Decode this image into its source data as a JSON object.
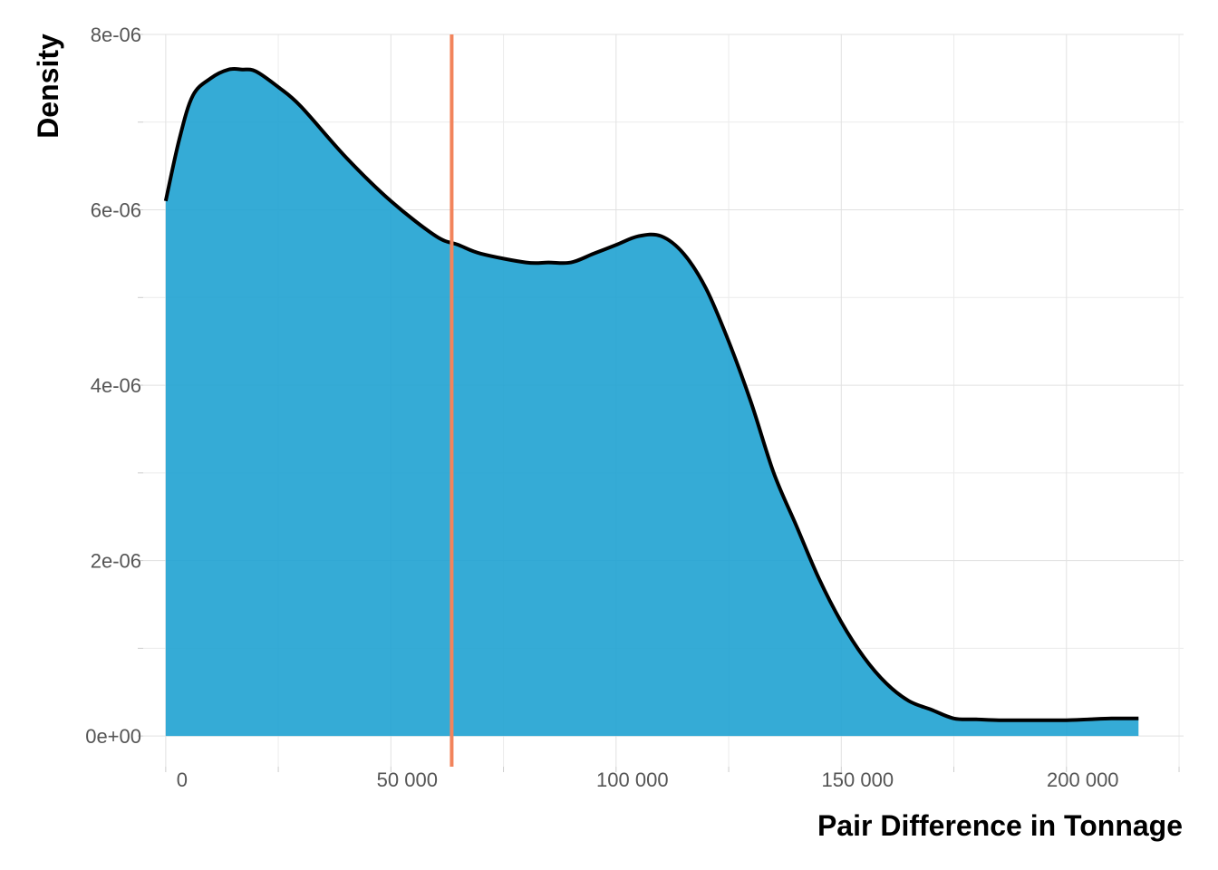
{
  "chart_data": {
    "type": "area",
    "xlabel": "Pair Difference in Tonnage",
    "ylabel": "Density",
    "xlim": [
      -5000,
      226000
    ],
    "ylim": [
      -3.5e-07,
      8e-06
    ],
    "x_ticks": [
      0,
      50000,
      100000,
      150000,
      200000
    ],
    "x_tick_labels": [
      "0",
      "50 000",
      "100 000",
      "150 000",
      "200 000"
    ],
    "x_minor_ticks": [
      25000,
      75000,
      125000,
      175000,
      225000
    ],
    "y_ticks": [
      0,
      2e-06,
      4e-06,
      6e-06,
      8e-06
    ],
    "y_tick_labels": [
      "0e+00",
      "2e-06",
      "4e-06",
      "6e-06",
      "8e-06"
    ],
    "y_minor_ticks": [
      1e-06,
      3e-06,
      5e-06,
      7e-06
    ],
    "grid": true,
    "fill_color": "#1fa2d1",
    "line_color": "#000000",
    "reference_line_color": "#f2845c",
    "reference_line_x": 63500,
    "series": [
      {
        "x": [
          0,
          3000,
          6000,
          10000,
          14000,
          17000,
          20000,
          25000,
          30000,
          40000,
          50000,
          60000,
          65000,
          70000,
          80000,
          85000,
          90000,
          95000,
          100000,
          105000,
          110000,
          115000,
          120000,
          125000,
          130000,
          135000,
          140000,
          145000,
          150000,
          155000,
          160000,
          165000,
          170000,
          175000,
          180000,
          185000,
          190000,
          195000,
          200000,
          205000,
          210000,
          216000
        ],
        "y": [
          6.1e-06,
          6.8e-06,
          7.3e-06,
          7.5e-06,
          7.6e-06,
          7.6e-06,
          7.58e-06,
          7.4e-06,
          7.18e-06,
          6.6e-06,
          6.1e-06,
          5.7e-06,
          5.6e-06,
          5.5e-06,
          5.4e-06,
          5.4e-06,
          5.4e-06,
          5.5e-06,
          5.6e-06,
          5.7e-06,
          5.7e-06,
          5.5e-06,
          5.1e-06,
          4.5e-06,
          3.8e-06,
          3e-06,
          2.4e-06,
          1.8e-06,
          1.3e-06,
          9e-07,
          6e-07,
          4e-07,
          3e-07,
          2e-07,
          1.9e-07,
          1.8e-07,
          1.8e-07,
          1.8e-07,
          1.8e-07,
          1.9e-07,
          2e-07,
          2e-07
        ]
      }
    ]
  }
}
